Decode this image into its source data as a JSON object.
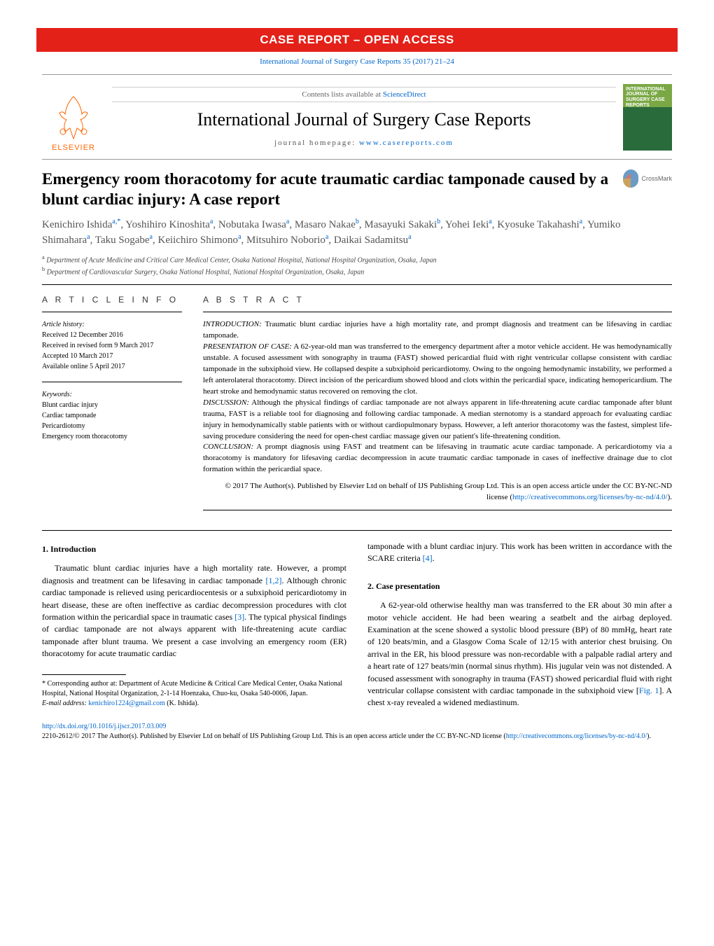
{
  "colors": {
    "red_bar": "#e32119",
    "link": "#0066cc",
    "elsevier_orange": "#ff6600",
    "text": "#000000",
    "muted": "#555555",
    "cover_top": "#7aa845",
    "cover_bottom": "#2a6b3c"
  },
  "banner": "CASE REPORT – OPEN ACCESS",
  "citation": "International Journal of Surgery Case Reports 35 (2017) 21–24",
  "header": {
    "contents_prefix": "Contents lists available at ",
    "contents_link": "ScienceDirect",
    "journal_name": "International Journal of Surgery Case Reports",
    "homepage_prefix": "journal homepage: ",
    "homepage_link": "www.casereports.com",
    "elsevier": "ELSEVIER",
    "cover_label": "INTERNATIONAL JOURNAL OF SURGERY CASE REPORTS"
  },
  "crossmark": "CrossMark",
  "title": "Emergency room thoracotomy for acute traumatic cardiac tamponade caused by a blunt cardiac injury: A case report",
  "authors_html": "Kenichiro Ishida<sup>a,*</sup>, Yoshihiro Kinoshita<sup>a</sup>, Nobutaka Iwasa<sup>a</sup>, Masaro Nakae<sup>b</sup>, Masayuki Sakaki<sup>b</sup>, Yohei Ieki<sup>a</sup>, Kyosuke Takahashi<sup>a</sup>, Yumiko Shimahara<sup>a</sup>, Taku Sogabe<sup>a</sup>, Keiichiro Shimono<sup>a</sup>, Mitsuhiro Noborio<sup>a</sup>, Daikai Sadamitsu<sup>a</sup>",
  "affiliations": [
    "a Department of Acute Medicine and Critical Care Medical Center, Osaka National Hospital, National Hospital Organization, Osaka, Japan",
    "b Department of Cardiovascular Surgery, Osaka National Hospital, National Hospital Organization, Osaka, Japan"
  ],
  "article_info": {
    "label": "a r t i c l e   i n f o",
    "history_label": "Article history:",
    "history": [
      "Received 12 December 2016",
      "Received in revised form 9 March 2017",
      "Accepted 10 March 2017",
      "Available online 5 April 2017"
    ],
    "keywords_label": "Keywords:",
    "keywords": [
      "Blunt cardiac injury",
      "Cardiac tamponade",
      "Pericardiotomy",
      "Emergency room thoracotomy"
    ]
  },
  "abstract": {
    "label": "a b s t r a c t",
    "sections": {
      "introduction_label": "INTRODUCTION:",
      "introduction": " Traumatic blunt cardiac injuries have a high mortality rate, and prompt diagnosis and treatment can be lifesaving in cardiac tamponade.",
      "presentation_label": "PRESENTATION OF CASE:",
      "presentation": " A 62-year-old man was transferred to the emergency department after a motor vehicle accident. He was hemodynamically unstable. A focused assessment with sonography in trauma (FAST) showed pericardial fluid with right ventricular collapse consistent with cardiac tamponade in the subxiphoid view. He collapsed despite a subxiphoid pericardiotomy. Owing to the ongoing hemodynamic instability, we performed a left anterolateral thoracotomy. Direct incision of the pericardium showed blood and clots within the pericardial space, indicating hemopericardium. The heart stroke and hemodynamic status recovered on removing the clot.",
      "discussion_label": "DISCUSSION:",
      "discussion": " Although the physical findings of cardiac tamponade are not always apparent in life-threatening acute cardiac tamponade after blunt trauma, FAST is a reliable tool for diagnosing and following cardiac tamponade. A median sternotomy is a standard approach for evaluating cardiac injury in hemodynamically stable patients with or without cardiopulmonary bypass. However, a left anterior thoracotomy was the fastest, simplest life-saving procedure considering the need for open-chest cardiac massage given our patient's life-threatening condition.",
      "conclusion_label": "CONCLUSION:",
      "conclusion": " A prompt diagnosis using FAST and treatment can be lifesaving in traumatic acute cardiac tamponade. A pericardiotomy via a thoracotomy is mandatory for lifesaving cardiac decompression in acute traumatic cardiac tamponade in cases of ineffective drainage due to clot formation within the pericardial space."
    },
    "copyright": "© 2017 The Author(s). Published by Elsevier Ltd on behalf of IJS Publishing Group Ltd. This is an open access article under the CC BY-NC-ND license (",
    "copyright_link": "http://creativecommons.org/licenses/by-nc-nd/4.0/",
    "copyright_close": ")."
  },
  "body": {
    "h1": "1.  Introduction",
    "p1a": "Traumatic blunt cardiac injuries have a high mortality rate. However, a prompt diagnosis and treatment can be lifesaving in cardiac tamponade ",
    "ref12": "[1,2]",
    "p1b": ". Although chronic cardiac tamponade is relieved using pericardiocentesis or a subxiphoid pericardiotomy in heart disease, these are often ineffective as cardiac decompression procedures with clot formation within the pericardial space in traumatic cases ",
    "ref3": "[3]",
    "p1c": ". The typical physical findings of cardiac tamponade are not always apparent with life-threatening acute cardiac tamponade after blunt trauma. We present a case involving an emergency room (ER) thoracotomy for acute traumatic cardiac",
    "p1_col2a": "tamponade with a blunt cardiac injury. This work has been written in accordance with the SCARE criteria ",
    "ref4": "[4]",
    "p1_col2b": ".",
    "h2": "2.  Case presentation",
    "p2a": "A 62-year-old otherwise healthy man was transferred to the ER about 30 min after a motor vehicle accident. He had been wearing a seatbelt and the airbag deployed. Examination at the scene showed a systolic blood pressure (BP) of 80 mmHg, heart rate of 120 beats/min, and a Glasgow Coma Scale of 12/15 with anterior chest bruising. On arrival in the ER, his blood pressure was non-recordable with a palpable radial artery and a heart rate of 127 beats/min (normal sinus rhythm). His jugular vein was not distended. A focused assessment with sonography in trauma (FAST) showed pericardial fluid with right ventricular collapse consistent with cardiac tamponade in the subxiphoid view [",
    "fig1": "Fig. 1",
    "p2b": "]. A chest x-ray revealed a widened mediastinum."
  },
  "footnotes": {
    "corr": "* Corresponding author at: Department of Acute Medicine & Critical Care Medical Center, Osaka National Hospital, National Hospital Organization, 2-1-14 Hoenzaka, Chuo-ku, Osaka 540-0006, Japan.",
    "email_label": "E-mail address: ",
    "email": "kenichiro1224@gmail.com",
    "email_suffix": " (K. Ishida)."
  },
  "footer": {
    "doi": "http://dx.doi.org/10.1016/j.ijscr.2017.03.009",
    "line2a": "2210-2612/© 2017 The Author(s). Published by Elsevier Ltd on behalf of IJS Publishing Group Ltd. This is an open access article under the CC BY-NC-ND license (",
    "line2link": "http://creativecommons.org/licenses/by-nc-nd/4.0/",
    "line2b": ")."
  }
}
